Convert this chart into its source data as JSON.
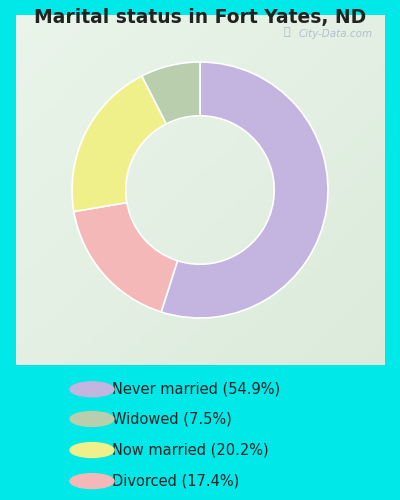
{
  "title": "Marital status in Fort Yates, ND",
  "wedge_sizes": [
    54.9,
    17.4,
    20.2,
    7.5
  ],
  "wedge_colors": [
    "#c4b4e0",
    "#f5b8b8",
    "#f0f08a",
    "#b8ceac"
  ],
  "labels": [
    "Never married (54.9%)",
    "Widowed (7.5%)",
    "Now married (20.2%)",
    "Divorced (17.4%)"
  ],
  "legend_colors": [
    "#c4b4e0",
    "#b8ceac",
    "#f0f08a",
    "#f5b8b8"
  ],
  "bg_outer": "#00e8e8",
  "bg_chart_top": "#e8f5ee",
  "bg_chart_bottom": "#d0ede0",
  "title_fontsize": 13.5,
  "legend_fontsize": 10.5,
  "watermark": "City-Data.com",
  "donut_width": 0.42,
  "startangle": 90
}
